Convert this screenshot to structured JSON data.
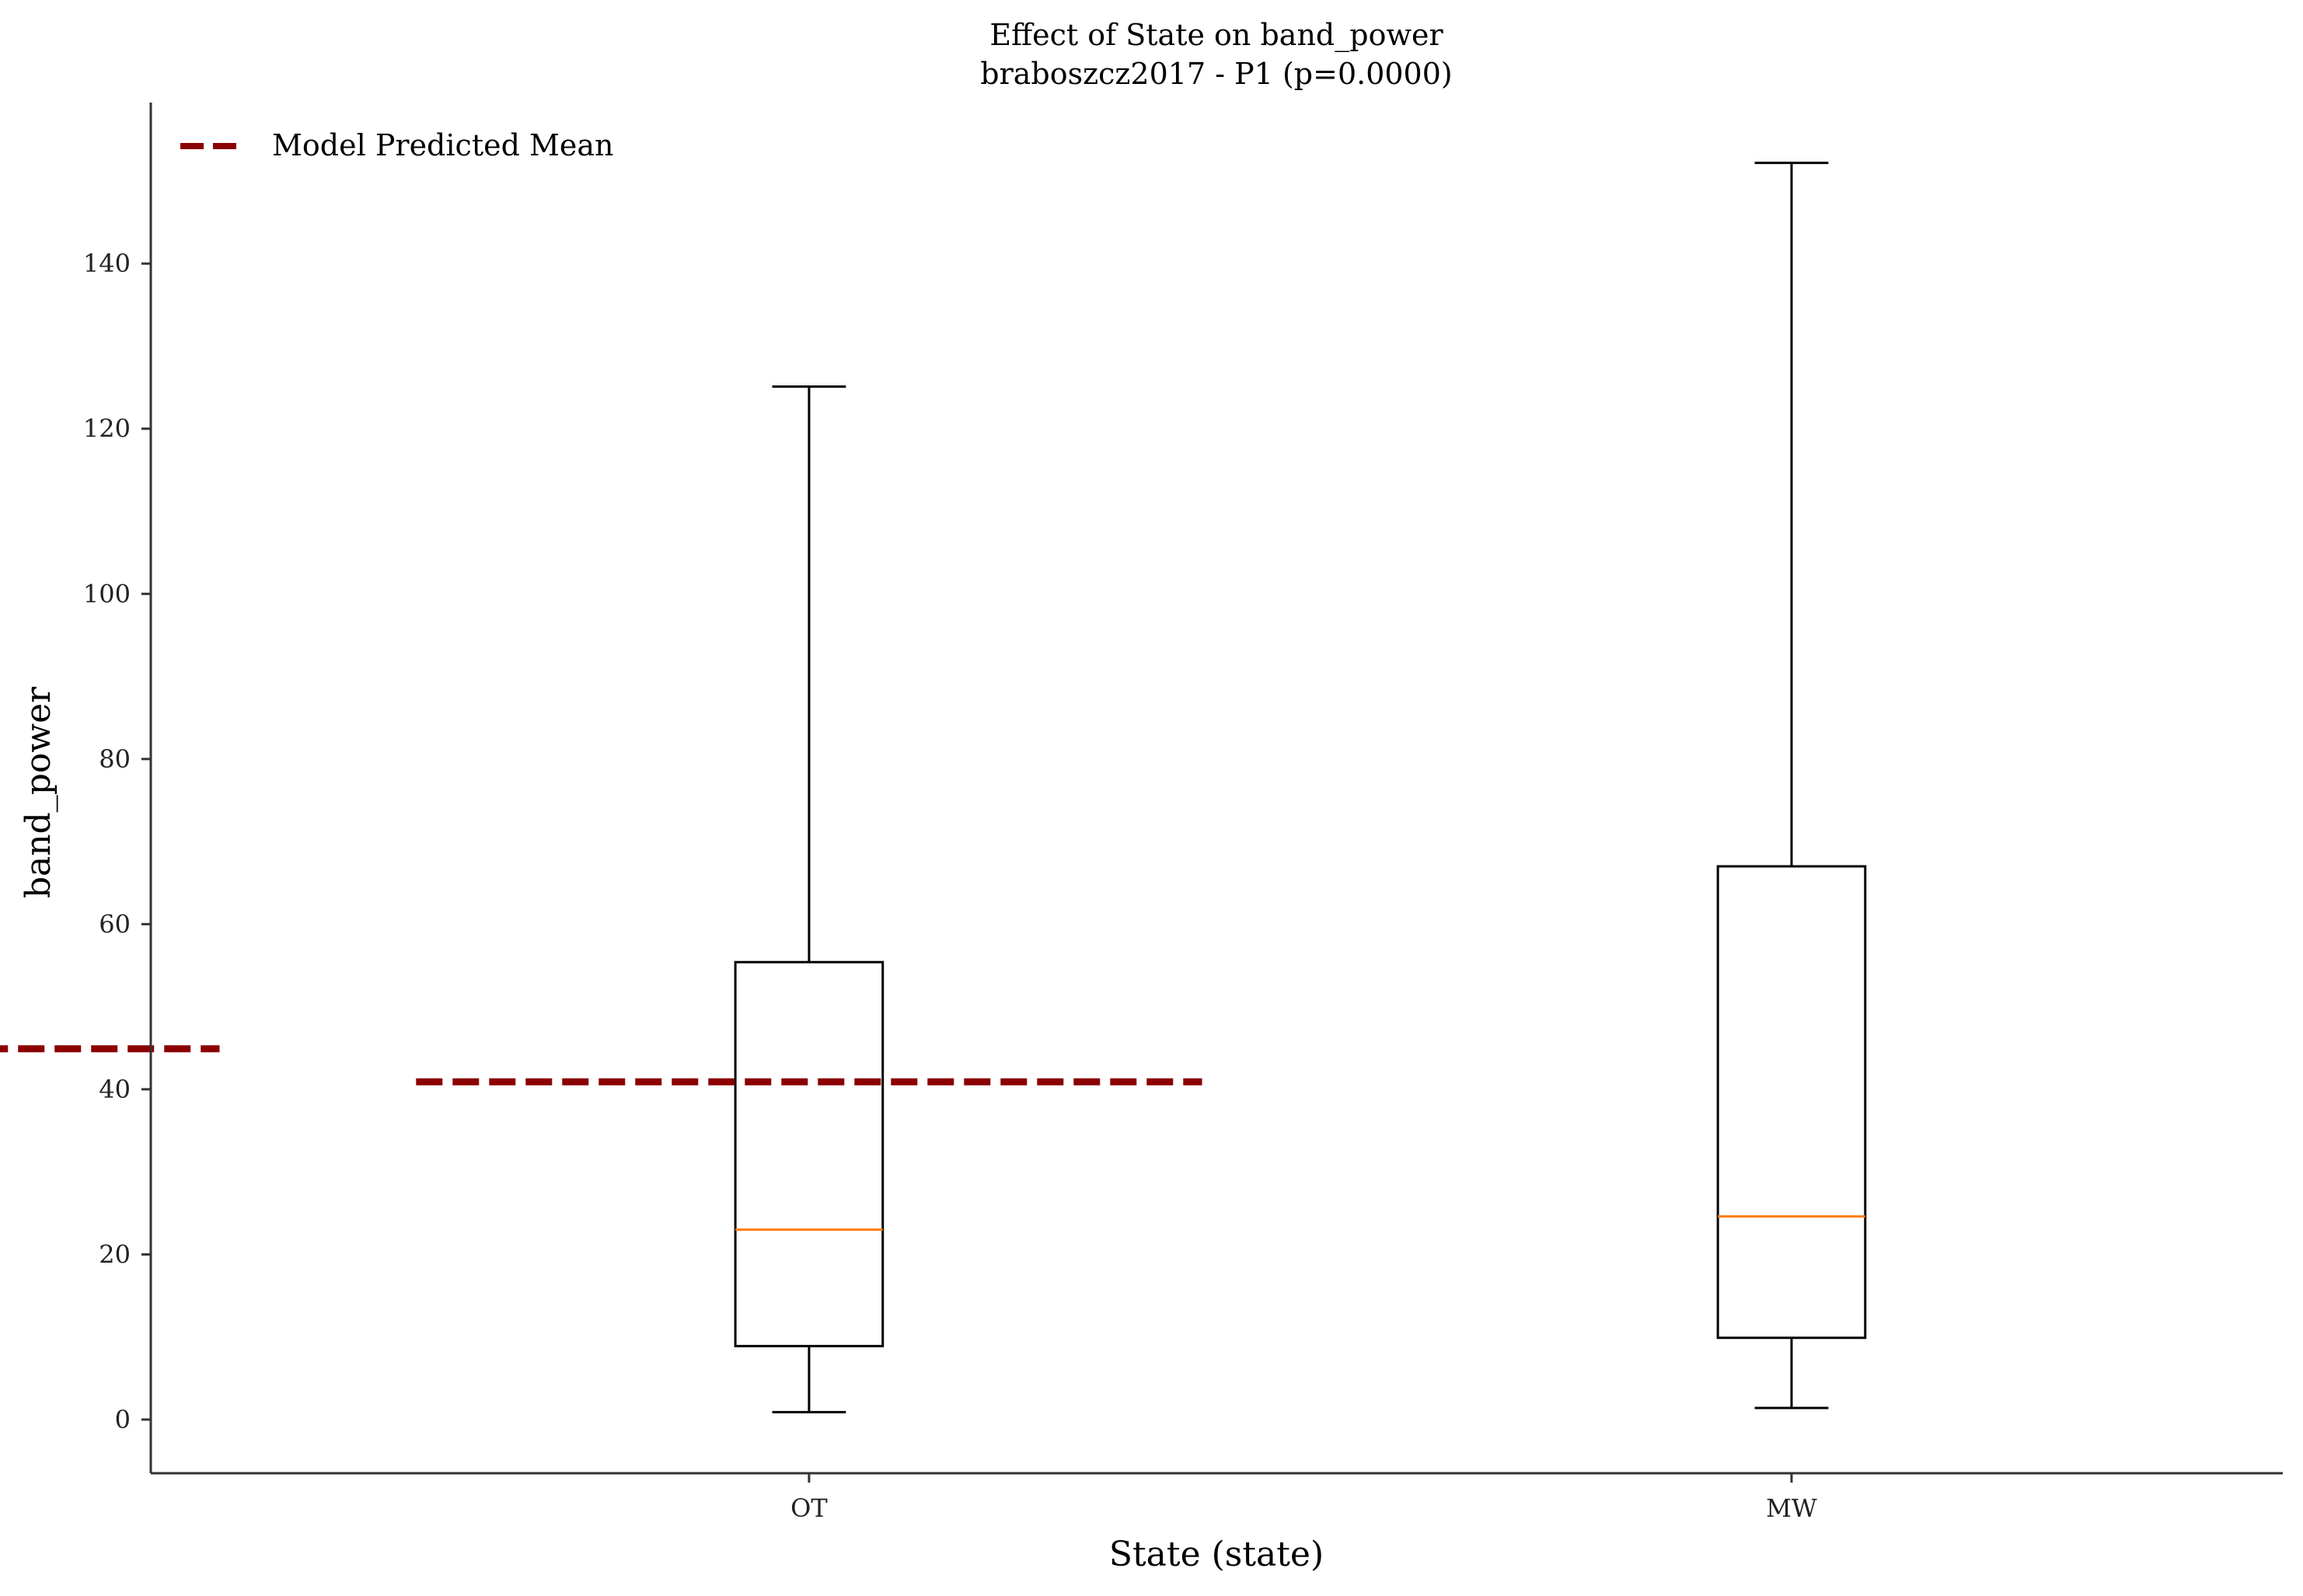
{
  "chart_data": {
    "type": "box",
    "title": "Effect of State on band_power",
    "subtitle": "braboszcz2017 - P1 (p=0.0000)",
    "xlabel": "State (state)",
    "ylabel": "band_power",
    "categories": [
      "OT",
      "MW"
    ],
    "ylim": [
      -6.5,
      159.5
    ],
    "yticks": [
      0,
      20,
      40,
      60,
      80,
      100,
      120,
      140
    ],
    "ytick_labels": [
      "0",
      "20",
      "40",
      "60",
      "80",
      "100",
      "120",
      "140"
    ],
    "grid": false,
    "legend": {
      "placement": "top-left",
      "entries": [
        "Model Predicted Mean"
      ]
    },
    "boxes": [
      {
        "category": "OT",
        "whisker_low": 0.9,
        "q1": 8.9,
        "median": 23.0,
        "q3": 55.4,
        "whisker_high": 125.1
      },
      {
        "category": "MW",
        "whisker_low": 1.4,
        "q1": 9.9,
        "median": 24.6,
        "q3": 67.0,
        "whisker_high": 152.2
      }
    ],
    "series": [
      {
        "name": "Model Predicted Mean",
        "style": "dashed",
        "color": "#8b0000",
        "x": [
          0,
          1
        ],
        "values": [
          44.9,
          40.9
        ]
      }
    ],
    "colors": {
      "box": "#000000",
      "median": "#ff7f0e",
      "predicted_mean": "#8b0000",
      "axis": "#333333"
    }
  }
}
